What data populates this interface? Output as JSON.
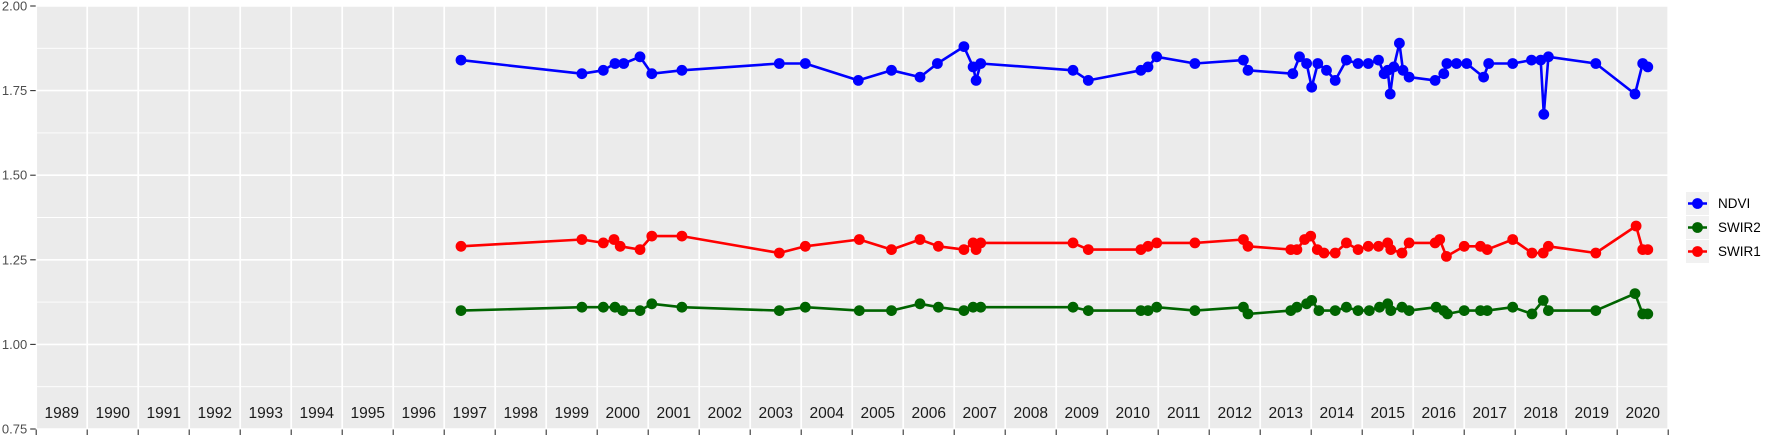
{
  "chart_data": {
    "type": "line",
    "title": "",
    "xlabel": "",
    "ylabel": "",
    "grid": true,
    "legend_position": "right",
    "panel_background": "#ebebeb",
    "grid_color": "#ffffff",
    "tick_color": "#333333",
    "y_axis_text_color": "#4d4d4d",
    "x_axis_text_color": "#1a1a1a",
    "x_axis": {
      "range": [
        1988.5,
        2020.5
      ],
      "tick_years": [
        1989,
        1990,
        1991,
        1992,
        1993,
        1994,
        1995,
        1996,
        1997,
        1998,
        1999,
        2000,
        2001,
        2002,
        2003,
        2004,
        2005,
        2006,
        2007,
        2008,
        2009,
        2010,
        2011,
        2012,
        2013,
        2014,
        2015,
        2016,
        2017,
        2018,
        2019,
        2020
      ]
    },
    "y_axis": {
      "range": [
        0.75,
        2.0
      ],
      "ticks": [
        0.75,
        1.0,
        1.25,
        1.5,
        1.75,
        2.0
      ],
      "tick_labels": [
        "0.75",
        "1.00",
        "1.25",
        "1.50",
        "1.75",
        "2.00"
      ],
      "minor_ticks": [
        0.875,
        1.125,
        1.375,
        1.625,
        1.875
      ]
    },
    "series": [
      {
        "name": "NDVI",
        "color": "#0000ff",
        "points": [
          [
            1996.83,
            1.84
          ],
          [
            1999.2,
            1.8
          ],
          [
            1999.62,
            1.81
          ],
          [
            1999.85,
            1.83
          ],
          [
            2000.02,
            1.83
          ],
          [
            2000.34,
            1.85
          ],
          [
            2000.57,
            1.8
          ],
          [
            2001.16,
            1.81
          ],
          [
            2003.07,
            1.83
          ],
          [
            2003.58,
            1.83
          ],
          [
            2004.62,
            1.78
          ],
          [
            2005.27,
            1.81
          ],
          [
            2005.83,
            1.79
          ],
          [
            2006.17,
            1.83
          ],
          [
            2006.69,
            1.88
          ],
          [
            2006.87,
            1.82
          ],
          [
            2006.93,
            1.78
          ],
          [
            2007.02,
            1.83
          ],
          [
            2008.83,
            1.81
          ],
          [
            2009.13,
            1.78
          ],
          [
            2010.16,
            1.81
          ],
          [
            2010.3,
            1.82
          ],
          [
            2010.47,
            1.85
          ],
          [
            2011.22,
            1.83
          ],
          [
            2012.17,
            1.84
          ],
          [
            2012.26,
            1.81
          ],
          [
            2013.14,
            1.8
          ],
          [
            2013.27,
            1.85
          ],
          [
            2013.41,
            1.83
          ],
          [
            2013.51,
            1.76
          ],
          [
            2013.63,
            1.83
          ],
          [
            2013.8,
            1.81
          ],
          [
            2013.97,
            1.78
          ],
          [
            2014.19,
            1.84
          ],
          [
            2014.42,
            1.83
          ],
          [
            2014.62,
            1.83
          ],
          [
            2014.82,
            1.84
          ],
          [
            2014.93,
            1.8
          ],
          [
            2015.0,
            1.81
          ],
          [
            2015.05,
            1.74
          ],
          [
            2015.12,
            1.82
          ],
          [
            2015.23,
            1.89
          ],
          [
            2015.3,
            1.81
          ],
          [
            2015.42,
            1.79
          ],
          [
            2015.93,
            1.78
          ],
          [
            2016.1,
            1.8
          ],
          [
            2016.16,
            1.83
          ],
          [
            2016.35,
            1.83
          ],
          [
            2016.55,
            1.83
          ],
          [
            2016.88,
            1.79
          ],
          [
            2016.98,
            1.83
          ],
          [
            2017.45,
            1.83
          ],
          [
            2017.82,
            1.84
          ],
          [
            2018.0,
            1.84
          ],
          [
            2018.06,
            1.68
          ],
          [
            2018.15,
            1.85
          ],
          [
            2019.08,
            1.83
          ],
          [
            2019.85,
            1.74
          ],
          [
            2020.0,
            1.83
          ],
          [
            2020.1,
            1.82
          ]
        ]
      },
      {
        "name": "SWIR2",
        "color": "#006400",
        "points": [
          [
            1996.83,
            1.1
          ],
          [
            1999.2,
            1.11
          ],
          [
            1999.62,
            1.11
          ],
          [
            1999.85,
            1.11
          ],
          [
            2000.0,
            1.1
          ],
          [
            2000.34,
            1.1
          ],
          [
            2000.57,
            1.12
          ],
          [
            2001.16,
            1.11
          ],
          [
            2003.07,
            1.1
          ],
          [
            2003.58,
            1.11
          ],
          [
            2004.64,
            1.1
          ],
          [
            2005.27,
            1.1
          ],
          [
            2005.83,
            1.12
          ],
          [
            2006.19,
            1.11
          ],
          [
            2006.69,
            1.1
          ],
          [
            2006.87,
            1.11
          ],
          [
            2007.02,
            1.11
          ],
          [
            2008.83,
            1.11
          ],
          [
            2009.13,
            1.1
          ],
          [
            2010.16,
            1.1
          ],
          [
            2010.3,
            1.1
          ],
          [
            2010.47,
            1.11
          ],
          [
            2011.22,
            1.1
          ],
          [
            2012.17,
            1.11
          ],
          [
            2012.26,
            1.09
          ],
          [
            2013.1,
            1.1
          ],
          [
            2013.22,
            1.11
          ],
          [
            2013.41,
            1.12
          ],
          [
            2013.51,
            1.13
          ],
          [
            2013.65,
            1.1
          ],
          [
            2013.97,
            1.1
          ],
          [
            2014.19,
            1.11
          ],
          [
            2014.42,
            1.1
          ],
          [
            2014.64,
            1.1
          ],
          [
            2014.84,
            1.11
          ],
          [
            2015.0,
            1.12
          ],
          [
            2015.06,
            1.1
          ],
          [
            2015.28,
            1.11
          ],
          [
            2015.42,
            1.1
          ],
          [
            2015.95,
            1.11
          ],
          [
            2016.1,
            1.1
          ],
          [
            2016.17,
            1.09
          ],
          [
            2016.5,
            1.1
          ],
          [
            2016.82,
            1.1
          ],
          [
            2016.95,
            1.1
          ],
          [
            2017.45,
            1.11
          ],
          [
            2017.83,
            1.09
          ],
          [
            2018.05,
            1.13
          ],
          [
            2018.15,
            1.1
          ],
          [
            2019.08,
            1.1
          ],
          [
            2019.85,
            1.15
          ],
          [
            2020.0,
            1.09
          ],
          [
            2020.1,
            1.09
          ]
        ]
      },
      {
        "name": "SWIR1",
        "color": "#ff0000",
        "points": [
          [
            1996.83,
            1.29
          ],
          [
            1999.2,
            1.31
          ],
          [
            1999.62,
            1.3
          ],
          [
            1999.83,
            1.31
          ],
          [
            1999.95,
            1.29
          ],
          [
            2000.34,
            1.28
          ],
          [
            2000.57,
            1.32
          ],
          [
            2001.16,
            1.32
          ],
          [
            2003.07,
            1.27
          ],
          [
            2003.58,
            1.29
          ],
          [
            2004.64,
            1.31
          ],
          [
            2005.27,
            1.28
          ],
          [
            2005.83,
            1.31
          ],
          [
            2006.19,
            1.29
          ],
          [
            2006.69,
            1.28
          ],
          [
            2006.87,
            1.3
          ],
          [
            2006.93,
            1.28
          ],
          [
            2007.02,
            1.3
          ],
          [
            2008.83,
            1.3
          ],
          [
            2009.13,
            1.28
          ],
          [
            2010.16,
            1.28
          ],
          [
            2010.3,
            1.29
          ],
          [
            2010.47,
            1.3
          ],
          [
            2011.22,
            1.3
          ],
          [
            2012.17,
            1.31
          ],
          [
            2012.26,
            1.29
          ],
          [
            2013.1,
            1.28
          ],
          [
            2013.22,
            1.28
          ],
          [
            2013.37,
            1.31
          ],
          [
            2013.49,
            1.32
          ],
          [
            2013.62,
            1.28
          ],
          [
            2013.75,
            1.27
          ],
          [
            2013.97,
            1.27
          ],
          [
            2014.19,
            1.3
          ],
          [
            2014.42,
            1.28
          ],
          [
            2014.62,
            1.29
          ],
          [
            2014.82,
            1.29
          ],
          [
            2015.0,
            1.3
          ],
          [
            2015.06,
            1.28
          ],
          [
            2015.28,
            1.27
          ],
          [
            2015.42,
            1.3
          ],
          [
            2015.93,
            1.3
          ],
          [
            2016.02,
            1.31
          ],
          [
            2016.15,
            1.26
          ],
          [
            2016.5,
            1.29
          ],
          [
            2016.82,
            1.29
          ],
          [
            2016.95,
            1.28
          ],
          [
            2017.45,
            1.31
          ],
          [
            2017.83,
            1.27
          ],
          [
            2018.05,
            1.27
          ],
          [
            2018.15,
            1.29
          ],
          [
            2019.08,
            1.27
          ],
          [
            2019.87,
            1.35
          ],
          [
            2020.0,
            1.28
          ],
          [
            2020.1,
            1.28
          ]
        ]
      }
    ]
  },
  "legend": {
    "entries": [
      {
        "label": "NDVI",
        "color": "#0000ff"
      },
      {
        "label": "SWIR2",
        "color": "#006400"
      },
      {
        "label": "SWIR1",
        "color": "#ff0000"
      }
    ]
  }
}
